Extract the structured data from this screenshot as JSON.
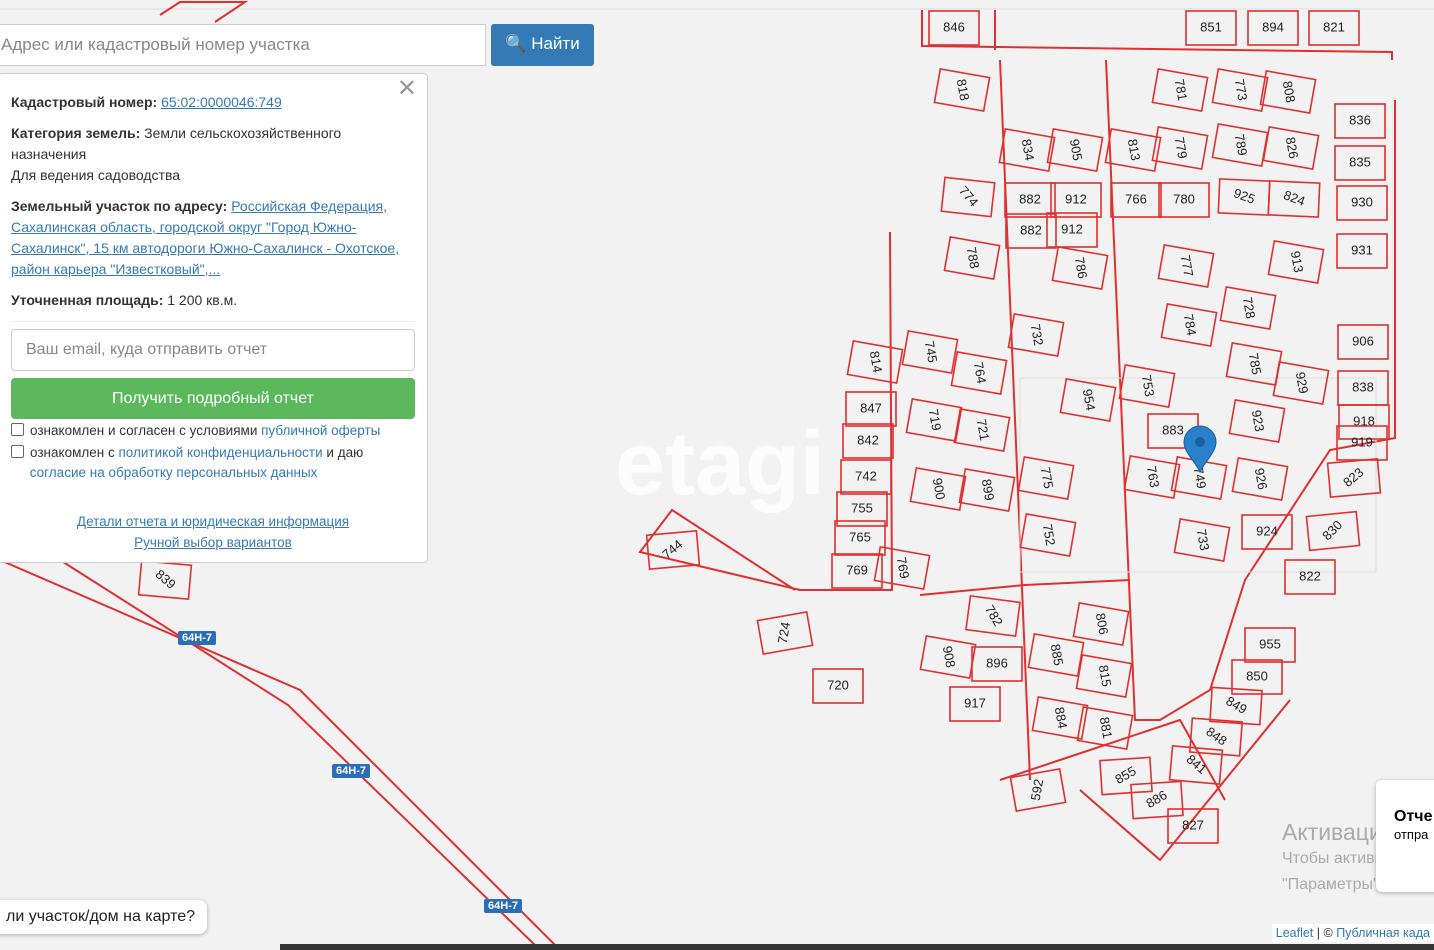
{
  "search": {
    "placeholder": "Адрес или кадастровый номер участка",
    "button": "Найти"
  },
  "panel": {
    "cadastral_label": "Кадастровый номер:",
    "cadastral_number": "65:02:0000046:749",
    "category_label": "Категория земель:",
    "category": "Земли сельскохозяйственного назначения",
    "use": "Для ведения садоводства",
    "address_label": "Земельный участок по адресу:",
    "address": "Российская Федерация, Сахалинская область, городской округ \"Город Южно-Сахалинск\", 15 км автодороги Южно-Сахалинск - Охотское, район карьера \"Известковый\",...",
    "area_label": "Уточненная площадь:",
    "area": "1 200 кв.м.",
    "email_placeholder": "Ваш email, куда отправить отчет",
    "submit": "Получить подробный отчет",
    "consent1": [
      "ознакомлен и согласен с условиями",
      "публичной оферты"
    ],
    "consent2": [
      "ознакомлен с",
      "политикой конфиденциальности",
      "и даю",
      "согласие на обработку персональных данных"
    ],
    "details_link": "Детали отчета и юридическая информация",
    "manual_link": "Ручной выбор вариантов"
  },
  "map": {
    "parcels": [
      "846",
      "851",
      "894",
      "821",
      "818",
      "781",
      "773",
      "808",
      "836",
      "834",
      "905",
      "813",
      "779",
      "789",
      "826",
      "835",
      "774",
      "882",
      "912",
      "766",
      "780",
      "925",
      "824",
      "930",
      "882",
      "912",
      "788",
      "786",
      "777",
      "913",
      "931",
      "732",
      "784",
      "728",
      "814",
      "745",
      "764",
      "753",
      "785",
      "929",
      "906",
      "838",
      "847",
      "954",
      "719",
      "721",
      "883",
      "923",
      "918",
      "842",
      "919",
      "742",
      "775",
      "763",
      "749",
      "926",
      "823",
      "900",
      "899",
      "755",
      "752",
      "733",
      "924",
      "830",
      "744",
      "765",
      "769",
      "769",
      "822",
      "724",
      "782",
      "806",
      "955",
      "908",
      "896",
      "885",
      "815",
      "850",
      "720",
      "917",
      "849",
      "884",
      "881",
      "848",
      "841",
      "855",
      "592",
      "886",
      "827",
      "839"
    ],
    "road_labels": [
      "64Н-7",
      "64Н-7",
      "64Н-7"
    ],
    "watermark": "etagi"
  },
  "prompt": "ли участок/дом на карте?",
  "attribution": [
    "Leaflet",
    "| ©",
    "Публичная када"
  ],
  "activation": [
    "Активация W",
    "Чтобы активирова",
    "\"Параметры\"."
  ],
  "side_popup": [
    "Отче",
    "отпра"
  ]
}
